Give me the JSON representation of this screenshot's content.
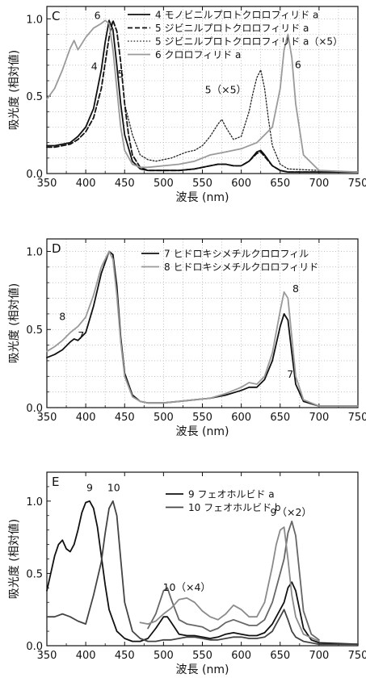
{
  "chart_data": [
    {
      "panel_label": "C",
      "type": "line",
      "xlabel": "波長 (nm)",
      "ylabel": "吸光度 (相対値)",
      "xlim": [
        350,
        750
      ],
      "ylim": [
        0,
        1.08
      ],
      "xticks": [
        350,
        400,
        450,
        500,
        550,
        600,
        650,
        700,
        750
      ],
      "yticks": [
        0.0,
        0.5,
        1.0
      ],
      "ytick_labels": [
        "0.0",
        "0.5",
        "1.0"
      ],
      "grid": true,
      "legend_position": "top-right",
      "series": [
        {
          "name": "4 モノビニルプロトクロロフィリド a",
          "style": "solid",
          "color": "#111111",
          "x": [
            350,
            360,
            370,
            380,
            390,
            400,
            410,
            420,
            425,
            430,
            435,
            440,
            445,
            450,
            460,
            470,
            480,
            500,
            520,
            540,
            560,
            570,
            580,
            590,
            600,
            610,
            620,
            625,
            630,
            640,
            650,
            660,
            670,
            700,
            750
          ],
          "y": [
            0.18,
            0.18,
            0.19,
            0.2,
            0.24,
            0.3,
            0.42,
            0.67,
            0.85,
            0.99,
            0.93,
            0.7,
            0.45,
            0.25,
            0.08,
            0.03,
            0.02,
            0.02,
            0.02,
            0.03,
            0.05,
            0.06,
            0.06,
            0.05,
            0.05,
            0.08,
            0.14,
            0.15,
            0.12,
            0.05,
            0.02,
            0.01,
            0.01,
            0.01,
            0.01
          ]
        },
        {
          "name": "5 ジビニルプロトクロロフィリド a",
          "style": "dashed",
          "color": "#111111",
          "x": [
            350,
            360,
            370,
            380,
            390,
            400,
            410,
            420,
            430,
            435,
            440,
            445,
            450,
            455,
            460,
            470,
            480,
            500,
            520,
            540,
            560,
            570,
            580,
            590,
            600,
            610,
            620,
            625,
            630,
            640,
            650,
            660,
            700,
            750
          ],
          "y": [
            0.17,
            0.17,
            0.18,
            0.19,
            0.22,
            0.27,
            0.36,
            0.55,
            0.88,
            0.99,
            0.92,
            0.72,
            0.45,
            0.25,
            0.12,
            0.04,
            0.02,
            0.02,
            0.02,
            0.03,
            0.05,
            0.06,
            0.06,
            0.05,
            0.05,
            0.08,
            0.13,
            0.14,
            0.11,
            0.05,
            0.02,
            0.01,
            0.01,
            0.01
          ]
        },
        {
          "name": "5 ジビニルプロトクロロフィリド a（×5）",
          "style": "dotted",
          "color": "#222222",
          "x": [
            450,
            460,
            470,
            480,
            490,
            500,
            510,
            520,
            530,
            540,
            550,
            560,
            570,
            575,
            580,
            590,
            600,
            610,
            615,
            620,
            625,
            630,
            635,
            640,
            650,
            660,
            700
          ],
          "y": [
            0.45,
            0.25,
            0.12,
            0.09,
            0.08,
            0.09,
            0.1,
            0.12,
            0.14,
            0.15,
            0.18,
            0.24,
            0.32,
            0.35,
            0.3,
            0.22,
            0.24,
            0.4,
            0.52,
            0.62,
            0.67,
            0.55,
            0.35,
            0.18,
            0.06,
            0.03,
            0.02
          ]
        },
        {
          "name": "6 クロロフィリド a",
          "style": "solid",
          "color": "#9a9a9a",
          "x": [
            350,
            360,
            370,
            380,
            385,
            390,
            400,
            410,
            420,
            425,
            430,
            435,
            440,
            445,
            450,
            460,
            470,
            480,
            500,
            520,
            540,
            560,
            580,
            600,
            620,
            640,
            650,
            655,
            660,
            665,
            670,
            680,
            700,
            750
          ],
          "y": [
            0.48,
            0.55,
            0.67,
            0.81,
            0.86,
            0.8,
            0.88,
            0.94,
            0.97,
            0.99,
            0.97,
            0.8,
            0.55,
            0.3,
            0.15,
            0.06,
            0.04,
            0.04,
            0.05,
            0.06,
            0.08,
            0.12,
            0.14,
            0.16,
            0.2,
            0.3,
            0.55,
            0.8,
            0.9,
            0.75,
            0.45,
            0.12,
            0.02,
            0.01
          ]
        }
      ],
      "annotations": [
        {
          "text": "6",
          "x": 415,
          "y": 1.0
        },
        {
          "text": "4",
          "x": 411,
          "y": 0.67
        },
        {
          "text": "5",
          "x": 445,
          "y": 0.62
        },
        {
          "text": "5（×5）",
          "x": 580,
          "y": 0.52
        },
        {
          "text": "6",
          "x": 673,
          "y": 0.68
        }
      ]
    },
    {
      "panel_label": "D",
      "type": "line",
      "xlabel": "波長 (nm)",
      "ylabel": "吸光度 (相対値)",
      "xlim": [
        350,
        750
      ],
      "ylim": [
        0,
        1.08
      ],
      "xticks": [
        350,
        400,
        450,
        500,
        550,
        600,
        650,
        700,
        750
      ],
      "yticks": [
        0.0,
        0.5,
        1.0
      ],
      "ytick_labels": [
        "0.0",
        "0.5",
        "1.0"
      ],
      "grid": true,
      "legend_position": "top-right",
      "series": [
        {
          "name": "7 ヒドロキシメチルクロロフィル",
          "style": "solid",
          "color": "#111111",
          "x": [
            350,
            360,
            370,
            380,
            385,
            390,
            400,
            410,
            420,
            430,
            435,
            440,
            445,
            450,
            460,
            470,
            480,
            500,
            520,
            540,
            560,
            580,
            600,
            610,
            620,
            630,
            640,
            650,
            655,
            660,
            665,
            670,
            680,
            700,
            750
          ],
          "y": [
            0.32,
            0.34,
            0.37,
            0.42,
            0.44,
            0.43,
            0.48,
            0.65,
            0.86,
            1.0,
            0.98,
            0.78,
            0.45,
            0.22,
            0.08,
            0.04,
            0.03,
            0.03,
            0.04,
            0.05,
            0.06,
            0.08,
            0.11,
            0.13,
            0.13,
            0.18,
            0.3,
            0.52,
            0.6,
            0.56,
            0.35,
            0.15,
            0.04,
            0.01,
            0.01
          ]
        },
        {
          "name": "8 ヒドロキシメチルクロロフィリド",
          "style": "solid",
          "color": "#9a9a9a",
          "x": [
            350,
            360,
            370,
            380,
            390,
            400,
            410,
            420,
            430,
            435,
            440,
            445,
            450,
            460,
            470,
            480,
            500,
            520,
            540,
            560,
            580,
            600,
            610,
            620,
            630,
            640,
            650,
            655,
            660,
            665,
            670,
            680,
            700,
            750
          ],
          "y": [
            0.36,
            0.39,
            0.43,
            0.48,
            0.52,
            0.58,
            0.72,
            0.9,
            1.0,
            0.95,
            0.72,
            0.42,
            0.2,
            0.07,
            0.04,
            0.03,
            0.03,
            0.04,
            0.05,
            0.06,
            0.09,
            0.13,
            0.16,
            0.15,
            0.2,
            0.35,
            0.62,
            0.74,
            0.7,
            0.45,
            0.2,
            0.05,
            0.01,
            0.01
          ]
        }
      ],
      "annotations": [
        {
          "text": "8",
          "x": 370,
          "y": 0.56
        },
        {
          "text": "7",
          "x": 394,
          "y": 0.44
        },
        {
          "text": "8",
          "x": 670,
          "y": 0.74
        },
        {
          "text": "7",
          "x": 663,
          "y": 0.19
        }
      ]
    },
    {
      "panel_label": "E",
      "type": "line",
      "xlabel": "波長 (nm)",
      "ylabel": "吸光度 (相対値)",
      "xlim": [
        350,
        750
      ],
      "ylim": [
        0,
        1.2
      ],
      "xticks": [
        350,
        400,
        450,
        500,
        550,
        600,
        650,
        700,
        750
      ],
      "yticks": [
        0.0,
        0.5,
        1.0
      ],
      "ytick_labels": [
        "0.0",
        "0.5",
        "1.0"
      ],
      "grid": false,
      "legend_position": "top-right",
      "series": [
        {
          "name": "9 フェオホルビド a",
          "style": "solid",
          "color": "#111111",
          "x": [
            350,
            355,
            360,
            365,
            370,
            375,
            380,
            385,
            390,
            395,
            400,
            405,
            410,
            415,
            420,
            425,
            430,
            440,
            450,
            460,
            470,
            480,
            490,
            500,
            505,
            510,
            520,
            530,
            540,
            550,
            560,
            570,
            580,
            590,
            600,
            610,
            620,
            630,
            640,
            650,
            655,
            660,
            665,
            670,
            675,
            680,
            690,
            700,
            750
          ],
          "y": [
            0.38,
            0.5,
            0.62,
            0.7,
            0.73,
            0.67,
            0.65,
            0.7,
            0.8,
            0.92,
            0.99,
            1.0,
            0.95,
            0.82,
            0.62,
            0.42,
            0.25,
            0.1,
            0.05,
            0.03,
            0.03,
            0.05,
            0.12,
            0.2,
            0.2,
            0.16,
            0.08,
            0.07,
            0.07,
            0.06,
            0.05,
            0.06,
            0.08,
            0.09,
            0.08,
            0.07,
            0.07,
            0.09,
            0.15,
            0.25,
            0.3,
            0.4,
            0.44,
            0.38,
            0.25,
            0.12,
            0.04,
            0.02,
            0.01
          ]
        },
        {
          "name": "10 フェオホルビド b",
          "style": "solid",
          "color": "#444444",
          "x": [
            350,
            360,
            370,
            380,
            390,
            400,
            410,
            420,
            425,
            430,
            435,
            440,
            445,
            450,
            460,
            470,
            480,
            490,
            500,
            510,
            520,
            530,
            540,
            550,
            560,
            570,
            580,
            590,
            600,
            610,
            620,
            630,
            640,
            645,
            650,
            655,
            660,
            665,
            670,
            680,
            700,
            750
          ],
          "y": [
            0.2,
            0.2,
            0.22,
            0.2,
            0.17,
            0.15,
            0.35,
            0.58,
            0.78,
            0.95,
            1.0,
            0.9,
            0.6,
            0.3,
            0.1,
            0.05,
            0.03,
            0.03,
            0.04,
            0.04,
            0.05,
            0.06,
            0.06,
            0.05,
            0.04,
            0.04,
            0.05,
            0.06,
            0.06,
            0.05,
            0.05,
            0.06,
            0.1,
            0.15,
            0.2,
            0.25,
            0.18,
            0.1,
            0.06,
            0.03,
            0.01,
            0.01
          ]
        },
        {
          "name": "9（×2）",
          "style": "solid",
          "color": "#666666",
          "x": [
            480,
            490,
            500,
            505,
            510,
            520,
            530,
            540,
            550,
            560,
            570,
            580,
            590,
            600,
            610,
            620,
            630,
            640,
            650,
            655,
            660,
            665,
            670,
            675,
            680,
            690,
            700
          ],
          "y": [
            0.12,
            0.22,
            0.38,
            0.4,
            0.32,
            0.18,
            0.15,
            0.14,
            0.13,
            0.1,
            0.12,
            0.16,
            0.18,
            0.16,
            0.14,
            0.14,
            0.18,
            0.3,
            0.5,
            0.6,
            0.78,
            0.86,
            0.76,
            0.5,
            0.24,
            0.08,
            0.04
          ]
        },
        {
          "name": "10（×4）",
          "style": "solid",
          "color": "#8a8a8a",
          "x": [
            470,
            480,
            490,
            500,
            510,
            520,
            530,
            540,
            550,
            560,
            570,
            580,
            590,
            600,
            610,
            620,
            630,
            640,
            645,
            650,
            655,
            660,
            665,
            670,
            680,
            700
          ],
          "y": [
            0.16,
            0.15,
            0.17,
            0.22,
            0.26,
            0.32,
            0.33,
            0.3,
            0.24,
            0.2,
            0.18,
            0.22,
            0.28,
            0.25,
            0.2,
            0.2,
            0.3,
            0.55,
            0.7,
            0.8,
            0.82,
            0.6,
            0.35,
            0.2,
            0.08,
            0.03
          ]
        }
      ],
      "annotations": [
        {
          "text": "9",
          "x": 405,
          "y": 1.07
        },
        {
          "text": "10",
          "x": 436,
          "y": 1.07
        },
        {
          "text": "9（×2）",
          "x": 664,
          "y": 0.9
        },
        {
          "text": "10（×4）",
          "x": 530,
          "y": 0.38
        }
      ]
    }
  ]
}
